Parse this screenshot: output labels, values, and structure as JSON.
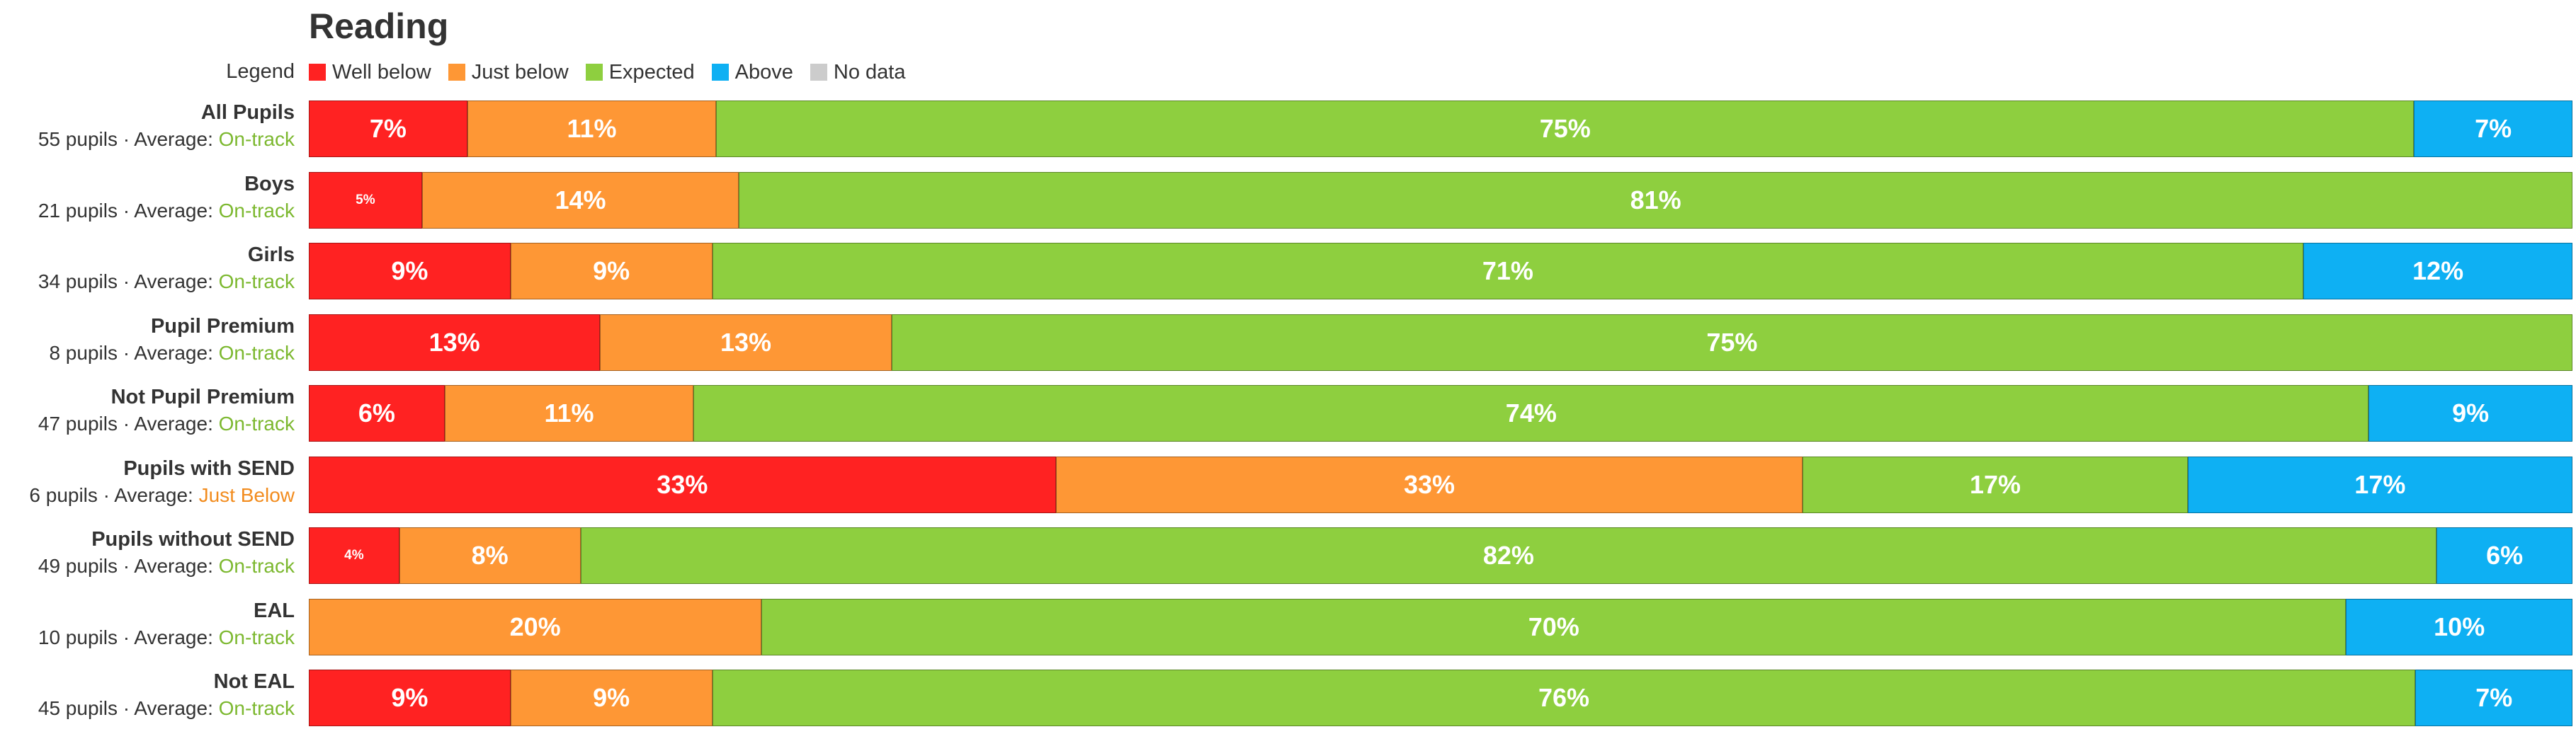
{
  "chart_data": {
    "type": "bar",
    "orientation": "horizontal",
    "stacked": true,
    "title": "Reading",
    "legend_label": "Legend",
    "legend_placement": "top-left",
    "legend": [
      {
        "key": "well_below",
        "name": "Well below",
        "color": "#ff2222"
      },
      {
        "key": "just_below",
        "name": "Just below",
        "color": "#fe9735"
      },
      {
        "key": "expected",
        "name": "Expected",
        "color": "#8ecf3f"
      },
      {
        "key": "above",
        "name": "Above",
        "color": "#0eb0f3"
      },
      {
        "key": "no_data",
        "name": "No data",
        "color": "#cccccc"
      }
    ],
    "unit": "%",
    "rows": [
      {
        "name": "All Pupils",
        "pupils_text": "55 pupils · Average: ",
        "average": "On-track",
        "average_type": "ontrack",
        "values": {
          "well_below": 7,
          "just_below": 11,
          "expected": 75,
          "above": 7,
          "no_data": 0
        }
      },
      {
        "name": "Boys",
        "pupils_text": "21 pupils · Average: ",
        "average": "On-track",
        "average_type": "ontrack",
        "values": {
          "well_below": 5,
          "just_below": 14,
          "expected": 81,
          "above": 0,
          "no_data": 0
        }
      },
      {
        "name": "Girls",
        "pupils_text": "34 pupils · Average: ",
        "average": "On-track",
        "average_type": "ontrack",
        "values": {
          "well_below": 9,
          "just_below": 9,
          "expected": 71,
          "above": 12,
          "no_data": 0
        }
      },
      {
        "name": "Pupil Premium",
        "pupils_text": "8 pupils · Average: ",
        "average": "On-track",
        "average_type": "ontrack",
        "values": {
          "well_below": 13,
          "just_below": 13,
          "expected": 75,
          "above": 0,
          "no_data": 0
        }
      },
      {
        "name": "Not Pupil Premium",
        "pupils_text": "47 pupils · Average: ",
        "average": "On-track",
        "average_type": "ontrack",
        "values": {
          "well_below": 6,
          "just_below": 11,
          "expected": 74,
          "above": 9,
          "no_data": 0
        }
      },
      {
        "name": "Pupils with SEND",
        "pupils_text": "6 pupils · Average: ",
        "average": "Just Below",
        "average_type": "justbelow",
        "values": {
          "well_below": 33,
          "just_below": 33,
          "expected": 17,
          "above": 17,
          "no_data": 0
        }
      },
      {
        "name": "Pupils without SEND",
        "pupils_text": "49 pupils · Average: ",
        "average": "On-track",
        "average_type": "ontrack",
        "values": {
          "well_below": 4,
          "just_below": 8,
          "expected": 82,
          "above": 6,
          "no_data": 0
        }
      },
      {
        "name": "EAL",
        "pupils_text": "10 pupils · Average: ",
        "average": "On-track",
        "average_type": "ontrack",
        "values": {
          "well_below": 0,
          "just_below": 20,
          "expected": 70,
          "above": 10,
          "no_data": 0
        }
      },
      {
        "name": "Not EAL",
        "pupils_text": "45 pupils · Average: ",
        "average": "On-track",
        "average_type": "ontrack",
        "values": {
          "well_below": 9,
          "just_below": 9,
          "expected": 76,
          "above": 7,
          "no_data": 0
        }
      }
    ]
  }
}
